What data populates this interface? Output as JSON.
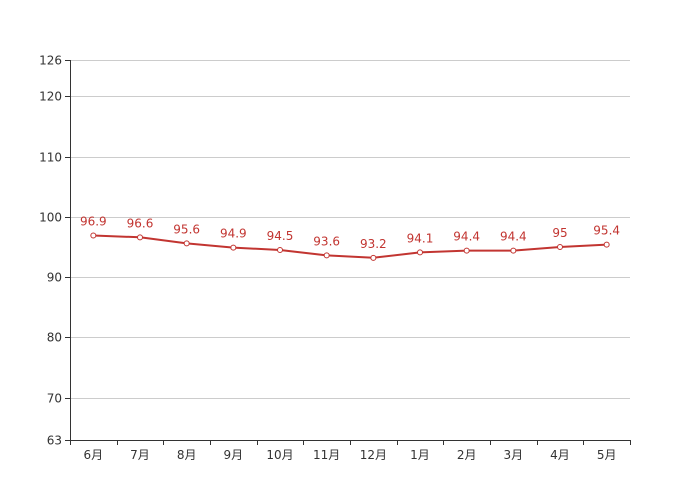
{
  "chart_data": {
    "type": "line",
    "title": "",
    "xlabel": "",
    "ylabel": "",
    "categories": [
      "6月",
      "7月",
      "8月",
      "9月",
      "10月",
      "11月",
      "12月",
      "1月",
      "2月",
      "3月",
      "4月",
      "5月"
    ],
    "series": [
      {
        "values": [
          96.9,
          96.6,
          95.6,
          94.9,
          94.5,
          93.6,
          93.2,
          94.1,
          94.4,
          94.4,
          95,
          95.4
        ],
        "color": "#c23531"
      }
    ],
    "ylim": [
      63,
      126
    ],
    "yticks": [
      63,
      70,
      80,
      90,
      100,
      110,
      120,
      126
    ],
    "data_labels": [
      "96.9",
      "96.6",
      "95.6",
      "94.9",
      "94.5",
      "93.6",
      "93.2",
      "94.1",
      "94.4",
      "94.4",
      "95",
      "95.4"
    ],
    "grid": true,
    "legend": "none"
  }
}
